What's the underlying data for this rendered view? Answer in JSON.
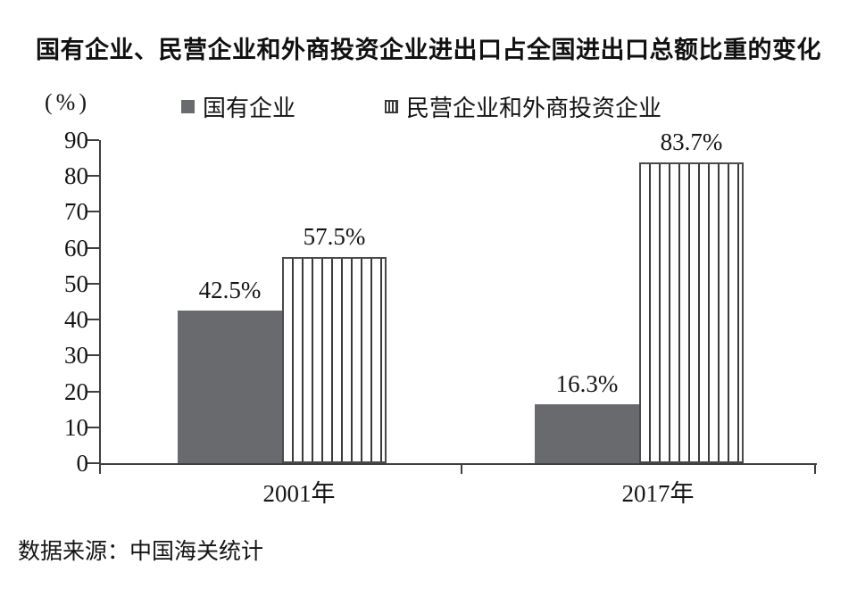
{
  "chart_data": {
    "type": "bar",
    "title": "国有企业、民营企业和外商投资企业进出口占全国进出口总额比重的变化",
    "unit_label": "(%)",
    "categories": [
      "2001年",
      "2017年"
    ],
    "series": [
      {
        "name": "国有企业",
        "pattern": "solid",
        "values": [
          42.5,
          16.3
        ],
        "labels": [
          "42.5%",
          "16.3%"
        ]
      },
      {
        "name": "民营企业和外商投资企业",
        "pattern": "vertical-stripes",
        "values": [
          57.5,
          83.7
        ],
        "labels": [
          "57.5%",
          "83.7%"
        ]
      }
    ],
    "ylim": [
      0,
      90
    ],
    "yticks": [
      "0",
      "10",
      "20",
      "30",
      "40",
      "50",
      "60",
      "70",
      "80",
      "90"
    ],
    "grid": false,
    "legend_position": "top"
  },
  "source_note": "数据来源：中国海关统计",
  "colors": {
    "bar_gray": "#696a6e",
    "stripe": "#3a3a3c",
    "axis": "#3f3f41",
    "text": "#141414"
  }
}
